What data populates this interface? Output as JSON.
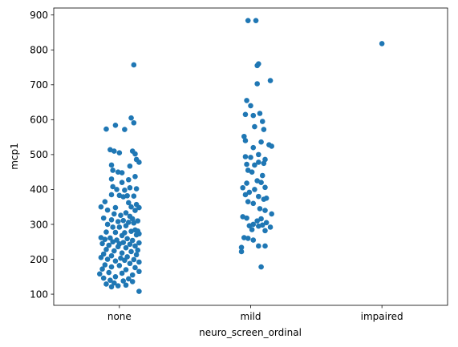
{
  "chart_data": {
    "type": "scatter",
    "subtype": "strip",
    "title": "",
    "xlabel": "neuro_screen_ordinal",
    "ylabel": "mcp1",
    "categories": [
      "none",
      "mild",
      "impaired"
    ],
    "ylim": [
      68,
      920
    ],
    "yticks": [
      100,
      200,
      300,
      400,
      500,
      600,
      700,
      800,
      900
    ],
    "grid": false,
    "legend": "none",
    "marker_color": "#1f77b4",
    "points": [
      {
        "c": 0,
        "j": 0.11,
        "y": 757
      },
      {
        "c": 0,
        "j": 0.09,
        "y": 605
      },
      {
        "c": 0,
        "j": 0.11,
        "y": 591
      },
      {
        "c": 0,
        "j": -0.03,
        "y": 584
      },
      {
        "c": 0,
        "j": -0.1,
        "y": 573
      },
      {
        "c": 0,
        "j": 0.04,
        "y": 572
      },
      {
        "c": 0,
        "j": -0.07,
        "y": 514
      },
      {
        "c": 0,
        "j": -0.04,
        "y": 510
      },
      {
        "c": 0,
        "j": 0.1,
        "y": 510
      },
      {
        "c": 0,
        "j": 0.0,
        "y": 505
      },
      {
        "c": 0,
        "j": 0.12,
        "y": 502
      },
      {
        "c": 0,
        "j": 0.13,
        "y": 486
      },
      {
        "c": 0,
        "j": 0.15,
        "y": 478
      },
      {
        "c": 0,
        "j": -0.06,
        "y": 470
      },
      {
        "c": 0,
        "j": 0.08,
        "y": 467
      },
      {
        "c": 0,
        "j": -0.05,
        "y": 455
      },
      {
        "c": 0,
        "j": -0.01,
        "y": 450
      },
      {
        "c": 0,
        "j": 0.02,
        "y": 448
      },
      {
        "c": 0,
        "j": 0.12,
        "y": 437
      },
      {
        "c": 0,
        "j": -0.06,
        "y": 430
      },
      {
        "c": 0,
        "j": 0.07,
        "y": 428
      },
      {
        "c": 0,
        "j": 0.02,
        "y": 420
      },
      {
        "c": 0,
        "j": -0.05,
        "y": 408
      },
      {
        "c": 0,
        "j": 0.08,
        "y": 405
      },
      {
        "c": 0,
        "j": 0.13,
        "y": 402
      },
      {
        "c": 0,
        "j": -0.02,
        "y": 400
      },
      {
        "c": 0,
        "j": 0.04,
        "y": 398
      },
      {
        "c": 0,
        "j": -0.06,
        "y": 385
      },
      {
        "c": 0,
        "j": 0.0,
        "y": 383
      },
      {
        "c": 0,
        "j": 0.06,
        "y": 382
      },
      {
        "c": 0,
        "j": 0.11,
        "y": 381
      },
      {
        "c": 0,
        "j": 0.03,
        "y": 379
      },
      {
        "c": 0,
        "j": -0.11,
        "y": 365
      },
      {
        "c": 0,
        "j": 0.07,
        "y": 362
      },
      {
        "c": 0,
        "j": 0.13,
        "y": 357
      },
      {
        "c": 0,
        "j": -0.14,
        "y": 350
      },
      {
        "c": 0,
        "j": 0.09,
        "y": 350
      },
      {
        "c": 0,
        "j": -0.03,
        "y": 348
      },
      {
        "c": 0,
        "j": 0.15,
        "y": 348
      },
      {
        "c": 0,
        "j": -0.09,
        "y": 341
      },
      {
        "c": 0,
        "j": 0.12,
        "y": 340
      },
      {
        "c": 0,
        "j": 0.05,
        "y": 333
      },
      {
        "c": 0,
        "j": -0.04,
        "y": 330
      },
      {
        "c": 0,
        "j": 0.01,
        "y": 326
      },
      {
        "c": 0,
        "j": 0.08,
        "y": 323
      },
      {
        "c": 0,
        "j": -0.12,
        "y": 318
      },
      {
        "c": 0,
        "j": 0.1,
        "y": 316
      },
      {
        "c": 0,
        "j": -0.06,
        "y": 313
      },
      {
        "c": 0,
        "j": 0.03,
        "y": 311
      },
      {
        "c": 0,
        "j": 0.14,
        "y": 310
      },
      {
        "c": 0,
        "j": -0.01,
        "y": 308
      },
      {
        "c": 0,
        "j": 0.07,
        "y": 306
      },
      {
        "c": 0,
        "j": 0.11,
        "y": 304
      },
      {
        "c": 0,
        "j": -0.09,
        "y": 300
      },
      {
        "c": 0,
        "j": 0.05,
        "y": 296
      },
      {
        "c": 0,
        "j": -0.05,
        "y": 292
      },
      {
        "c": 0,
        "j": 0.0,
        "y": 292
      },
      {
        "c": 0,
        "j": 0.12,
        "y": 284
      },
      {
        "c": 0,
        "j": 0.14,
        "y": 281
      },
      {
        "c": 0,
        "j": 0.09,
        "y": 280
      },
      {
        "c": 0,
        "j": -0.1,
        "y": 278
      },
      {
        "c": 0,
        "j": -0.03,
        "y": 277
      },
      {
        "c": 0,
        "j": 0.04,
        "y": 276
      },
      {
        "c": 0,
        "j": 0.15,
        "y": 273
      },
      {
        "c": 0,
        "j": 0.13,
        "y": 270
      },
      {
        "c": 0,
        "j": 0.02,
        "y": 268
      },
      {
        "c": 0,
        "j": -0.14,
        "y": 262
      },
      {
        "c": 0,
        "j": -0.07,
        "y": 261
      },
      {
        "c": 0,
        "j": 0.06,
        "y": 259
      },
      {
        "c": 0,
        "j": -0.11,
        "y": 257
      },
      {
        "c": 0,
        "j": -0.02,
        "y": 255
      },
      {
        "c": 0,
        "j": 0.1,
        "y": 254
      },
      {
        "c": 0,
        "j": -0.05,
        "y": 250
      },
      {
        "c": 0,
        "j": 0.03,
        "y": 248
      },
      {
        "c": 0,
        "j": 0.15,
        "y": 247
      },
      {
        "c": 0,
        "j": -0.13,
        "y": 245
      },
      {
        "c": 0,
        "j": 0.0,
        "y": 244
      },
      {
        "c": 0,
        "j": 0.08,
        "y": 243
      },
      {
        "c": 0,
        "j": -0.08,
        "y": 240
      },
      {
        "c": 0,
        "j": 0.12,
        "y": 238
      },
      {
        "c": 0,
        "j": -0.01,
        "y": 236
      },
      {
        "c": 0,
        "j": 0.05,
        "y": 233
      },
      {
        "c": 0,
        "j": -0.1,
        "y": 228
      },
      {
        "c": 0,
        "j": 0.14,
        "y": 226
      },
      {
        "c": 0,
        "j": -0.04,
        "y": 224
      },
      {
        "c": 0,
        "j": 0.09,
        "y": 222
      },
      {
        "c": 0,
        "j": 0.02,
        "y": 218
      },
      {
        "c": 0,
        "j": -0.12,
        "y": 215
      },
      {
        "c": 0,
        "j": 0.13,
        "y": 213
      },
      {
        "c": 0,
        "j": -0.06,
        "y": 210
      },
      {
        "c": 0,
        "j": 0.06,
        "y": 207
      },
      {
        "c": 0,
        "j": -0.14,
        "y": 205
      },
      {
        "c": 0,
        "j": 0.01,
        "y": 203
      },
      {
        "c": 0,
        "j": -0.09,
        "y": 200
      },
      {
        "c": 0,
        "j": 0.11,
        "y": 199
      },
      {
        "c": 0,
        "j": 0.04,
        "y": 197
      },
      {
        "c": 0,
        "j": -0.03,
        "y": 195
      },
      {
        "c": 0,
        "j": 0.15,
        "y": 192
      },
      {
        "c": 0,
        "j": 0.08,
        "y": 188
      },
      {
        "c": 0,
        "j": -0.11,
        "y": 184
      },
      {
        "c": 0,
        "j": 0.0,
        "y": 182
      },
      {
        "c": 0,
        "j": -0.06,
        "y": 178
      },
      {
        "c": 0,
        "j": 0.12,
        "y": 176
      },
      {
        "c": 0,
        "j": -0.13,
        "y": 172
      },
      {
        "c": 0,
        "j": 0.05,
        "y": 170
      },
      {
        "c": 0,
        "j": 0.15,
        "y": 165
      },
      {
        "c": 0,
        "j": -0.08,
        "y": 162
      },
      {
        "c": 0,
        "j": 0.02,
        "y": 160
      },
      {
        "c": 0,
        "j": -0.15,
        "y": 158
      },
      {
        "c": 0,
        "j": 0.1,
        "y": 155
      },
      {
        "c": 0,
        "j": -0.03,
        "y": 150
      },
      {
        "c": 0,
        "j": -0.12,
        "y": 146
      },
      {
        "c": 0,
        "j": 0.07,
        "y": 144
      },
      {
        "c": 0,
        "j": -0.07,
        "y": 140
      },
      {
        "c": 0,
        "j": 0.03,
        "y": 138
      },
      {
        "c": 0,
        "j": 0.1,
        "y": 136
      },
      {
        "c": 0,
        "j": -0.04,
        "y": 132
      },
      {
        "c": 0,
        "j": -0.1,
        "y": 129
      },
      {
        "c": 0,
        "j": 0.05,
        "y": 126
      },
      {
        "c": 0,
        "j": -0.01,
        "y": 124
      },
      {
        "c": 0,
        "j": -0.06,
        "y": 121
      },
      {
        "c": 0,
        "j": 0.15,
        "y": 108
      },
      {
        "c": 1,
        "j": -0.02,
        "y": 884
      },
      {
        "c": 1,
        "j": 0.04,
        "y": 884
      },
      {
        "c": 1,
        "j": 0.06,
        "y": 760
      },
      {
        "c": 1,
        "j": 0.05,
        "y": 755
      },
      {
        "c": 1,
        "j": 0.15,
        "y": 712
      },
      {
        "c": 1,
        "j": 0.05,
        "y": 703
      },
      {
        "c": 1,
        "j": -0.03,
        "y": 655
      },
      {
        "c": 1,
        "j": 0.0,
        "y": 640
      },
      {
        "c": 1,
        "j": -0.04,
        "y": 615
      },
      {
        "c": 1,
        "j": 0.02,
        "y": 612
      },
      {
        "c": 1,
        "j": 0.07,
        "y": 618
      },
      {
        "c": 1,
        "j": 0.09,
        "y": 595
      },
      {
        "c": 1,
        "j": 0.03,
        "y": 580
      },
      {
        "c": 1,
        "j": 0.1,
        "y": 572
      },
      {
        "c": 1,
        "j": -0.05,
        "y": 552
      },
      {
        "c": 1,
        "j": -0.04,
        "y": 540
      },
      {
        "c": 1,
        "j": 0.08,
        "y": 536
      },
      {
        "c": 1,
        "j": 0.14,
        "y": 528
      },
      {
        "c": 1,
        "j": 0.16,
        "y": 524
      },
      {
        "c": 1,
        "j": 0.02,
        "y": 520
      },
      {
        "c": 1,
        "j": 0.06,
        "y": 500
      },
      {
        "c": 1,
        "j": -0.04,
        "y": 494
      },
      {
        "c": 1,
        "j": 0.0,
        "y": 492
      },
      {
        "c": 1,
        "j": 0.11,
        "y": 486
      },
      {
        "c": 1,
        "j": 0.06,
        "y": 478
      },
      {
        "c": 1,
        "j": 0.1,
        "y": 475
      },
      {
        "c": 1,
        "j": -0.03,
        "y": 472
      },
      {
        "c": 1,
        "j": 0.03,
        "y": 470
      },
      {
        "c": 1,
        "j": -0.02,
        "y": 455
      },
      {
        "c": 1,
        "j": 0.01,
        "y": 450
      },
      {
        "c": 1,
        "j": 0.09,
        "y": 440
      },
      {
        "c": 1,
        "j": 0.05,
        "y": 425
      },
      {
        "c": 1,
        "j": 0.08,
        "y": 420
      },
      {
        "c": 1,
        "j": -0.03,
        "y": 418
      },
      {
        "c": 1,
        "j": 0.11,
        "y": 406
      },
      {
        "c": 1,
        "j": -0.06,
        "y": 405
      },
      {
        "c": 1,
        "j": 0.03,
        "y": 400
      },
      {
        "c": 1,
        "j": -0.01,
        "y": 392
      },
      {
        "c": 1,
        "j": -0.04,
        "y": 385
      },
      {
        "c": 1,
        "j": 0.06,
        "y": 380
      },
      {
        "c": 1,
        "j": 0.12,
        "y": 375
      },
      {
        "c": 1,
        "j": 0.1,
        "y": 372
      },
      {
        "c": 1,
        "j": -0.02,
        "y": 365
      },
      {
        "c": 1,
        "j": 0.02,
        "y": 360
      },
      {
        "c": 1,
        "j": 0.07,
        "y": 345
      },
      {
        "c": 1,
        "j": 0.11,
        "y": 340
      },
      {
        "c": 1,
        "j": 0.16,
        "y": 330
      },
      {
        "c": 1,
        "j": -0.06,
        "y": 322
      },
      {
        "c": 1,
        "j": -0.03,
        "y": 318
      },
      {
        "c": 1,
        "j": 0.08,
        "y": 316
      },
      {
        "c": 1,
        "j": 0.05,
        "y": 310
      },
      {
        "c": 1,
        "j": 0.12,
        "y": 305
      },
      {
        "c": 1,
        "j": 0.02,
        "y": 300
      },
      {
        "c": 1,
        "j": 0.09,
        "y": 298
      },
      {
        "c": 1,
        "j": -0.01,
        "y": 296
      },
      {
        "c": 1,
        "j": 0.06,
        "y": 295
      },
      {
        "c": 1,
        "j": 0.15,
        "y": 292
      },
      {
        "c": 1,
        "j": 0.01,
        "y": 285
      },
      {
        "c": 1,
        "j": 0.11,
        "y": 282
      },
      {
        "c": 1,
        "j": -0.05,
        "y": 262
      },
      {
        "c": 1,
        "j": -0.02,
        "y": 260
      },
      {
        "c": 1,
        "j": 0.02,
        "y": 255
      },
      {
        "c": 1,
        "j": 0.06,
        "y": 238
      },
      {
        "c": 1,
        "j": 0.11,
        "y": 238
      },
      {
        "c": 1,
        "j": -0.07,
        "y": 234
      },
      {
        "c": 1,
        "j": -0.07,
        "y": 222
      },
      {
        "c": 1,
        "j": 0.08,
        "y": 178
      },
      {
        "c": 2,
        "j": 0.0,
        "y": 818
      }
    ]
  }
}
